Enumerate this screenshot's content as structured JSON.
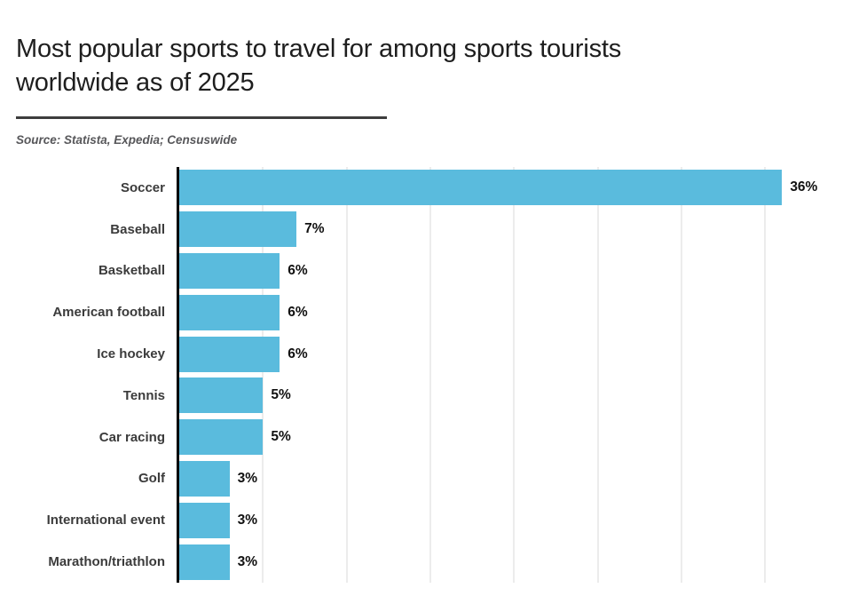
{
  "header": {
    "title": "Most popular sports to travel for among sports tourists worldwide as of 2025",
    "title_lines": [
      "Most popular sports to travel for among sports tourists",
      "worldwide as of 2025"
    ],
    "source": "Source: Statista, Expedia; Censuswide"
  },
  "chart_data": {
    "type": "bar",
    "orientation": "horizontal",
    "title": "Most popular sports to travel for among sports tourists worldwide as of 2025",
    "xlabel": "",
    "ylabel": "",
    "categories": [
      "Soccer",
      "Baseball",
      "Basketball",
      "American football",
      "Ice hockey",
      "Tennis",
      "Car racing",
      "Golf",
      "International event",
      "Marathon/triathlon"
    ],
    "values": [
      36,
      7,
      6,
      6,
      6,
      5,
      5,
      3,
      3,
      3
    ],
    "value_labels": [
      "36%",
      "7%",
      "6%",
      "6%",
      "6%",
      "5%",
      "5%",
      "3%",
      "3%",
      "3%"
    ],
    "xlim": [
      0,
      40
    ],
    "grid": true,
    "gridline_interval_percent": 5,
    "legend": "none",
    "colors": {
      "bar": "#5abbdd",
      "axis": "#000000",
      "gridline": "#ececec",
      "category_label": "#3b3b3b",
      "value_label": "#111111",
      "title": "#1e1e1e",
      "source": "#57575a",
      "underline": "#3d3d3d"
    }
  }
}
